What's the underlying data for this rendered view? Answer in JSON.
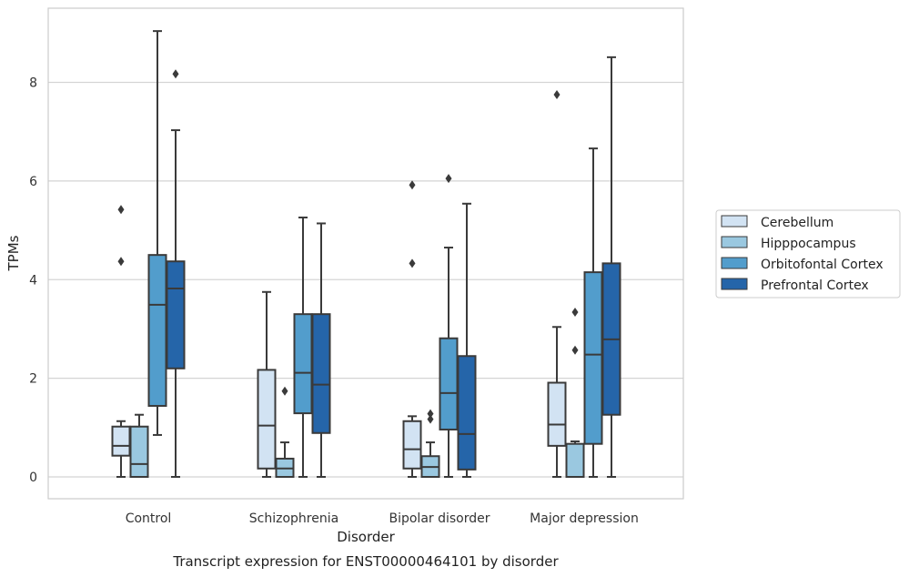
{
  "chart_data": {
    "type": "box",
    "title": "Transcript expression for ENST00000464101 by disorder",
    "xlabel": "Disorder",
    "ylabel": "TPMs",
    "ylim": [
      -0.45,
      9.6
    ],
    "yticks": [
      0,
      2,
      4,
      6,
      8
    ],
    "grid": "horizontal",
    "legend_position": "right",
    "categories": [
      "Control",
      "Schizophrenia",
      "Bipolar disorder",
      "Major depression"
    ],
    "series": [
      {
        "name": "Cerebellum",
        "color": "#d2e3f3",
        "boxes": [
          {
            "whislo": 0,
            "q1": 0.43,
            "med": 0.63,
            "q3": 1.02,
            "whishi": 1.13,
            "fliers": [
              4.37,
              5.42
            ]
          },
          {
            "whislo": 0,
            "q1": 0.17,
            "med": 1.04,
            "q3": 2.17,
            "whishi": 3.75,
            "fliers": []
          },
          {
            "whislo": 0,
            "q1": 0.17,
            "med": 0.56,
            "q3": 1.13,
            "whishi": 1.23,
            "fliers": [
              4.33,
              5.92
            ]
          },
          {
            "whislo": 0,
            "q1": 0.63,
            "med": 1.06,
            "q3": 1.91,
            "whishi": 3.04,
            "fliers": [
              7.75
            ]
          }
        ]
      },
      {
        "name": "Hipppocampus",
        "color": "#9ac8e0",
        "boxes": [
          {
            "whislo": 0,
            "q1": 0,
            "med": 0.26,
            "q3": 1.02,
            "whishi": 1.26,
            "fliers": []
          },
          {
            "whislo": 0,
            "q1": 0,
            "med": 0.17,
            "q3": 0.37,
            "whishi": 0.7,
            "fliers": [
              1.74
            ]
          },
          {
            "whislo": 0,
            "q1": 0,
            "med": 0.2,
            "q3": 0.42,
            "whishi": 0.7,
            "fliers": [
              1.17,
              1.28
            ]
          },
          {
            "whislo": 0,
            "q1": 0,
            "med": 0,
            "q3": 0.67,
            "whishi": 0.72,
            "fliers": [
              2.57,
              3.34
            ]
          }
        ]
      },
      {
        "name": "Orbitofontal Cortex",
        "color": "#529dcc",
        "boxes": [
          {
            "whislo": 0.85,
            "q1": 1.44,
            "med": 3.49,
            "q3": 4.5,
            "whishi": 9.04,
            "fliers": []
          },
          {
            "whislo": 0,
            "q1": 1.29,
            "med": 2.11,
            "q3": 3.3,
            "whishi": 5.26,
            "fliers": []
          },
          {
            "whislo": 0,
            "q1": 0.96,
            "med": 1.7,
            "q3": 2.81,
            "whishi": 4.65,
            "fliers": [
              6.05
            ]
          },
          {
            "whislo": 0,
            "q1": 0.67,
            "med": 2.48,
            "q3": 4.15,
            "whishi": 6.66,
            "fliers": []
          }
        ]
      },
      {
        "name": "Prefrontal Cortex",
        "color": "#2565a9",
        "boxes": [
          {
            "whislo": 0,
            "q1": 2.2,
            "med": 3.82,
            "q3": 4.37,
            "whishi": 7.03,
            "fliers": [
              8.17
            ]
          },
          {
            "whislo": 0,
            "q1": 0.89,
            "med": 1.87,
            "q3": 3.3,
            "whishi": 5.14,
            "fliers": []
          },
          {
            "whislo": 0,
            "q1": 0.15,
            "med": 0.87,
            "q3": 2.45,
            "whishi": 5.54,
            "fliers": []
          },
          {
            "whislo": 0,
            "q1": 1.26,
            "med": 2.79,
            "q3": 4.33,
            "whishi": 8.51,
            "fliers": []
          }
        ]
      }
    ]
  }
}
